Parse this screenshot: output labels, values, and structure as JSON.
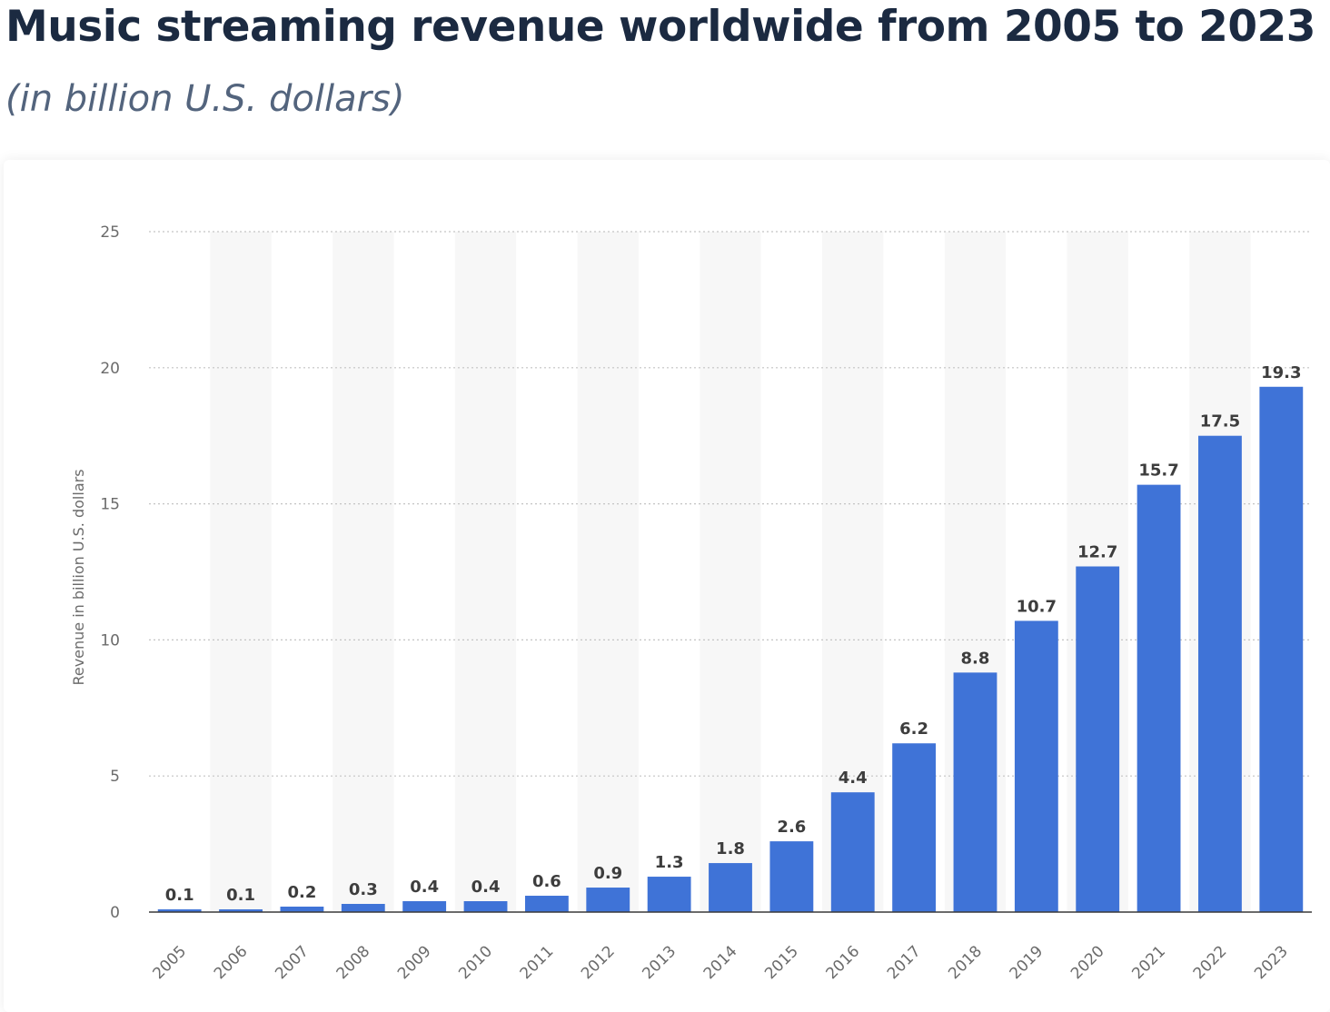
{
  "title": "Music streaming revenue worldwide from 2005 to 2023",
  "subtitle": "(in billion U.S. dollars)",
  "colors": {
    "bar": "#3f73d7",
    "band": "#f7f7f7",
    "grid": "#c4c4c4",
    "axis": "#3a3a3a"
  },
  "chart_data": {
    "type": "bar",
    "categories": [
      "2005",
      "2006",
      "2007",
      "2008",
      "2009",
      "2010",
      "2011",
      "2012",
      "2013",
      "2014",
      "2015",
      "2016",
      "2017",
      "2018",
      "2019",
      "2020",
      "2021",
      "2022",
      "2023"
    ],
    "values": [
      0.1,
      0.1,
      0.2,
      0.3,
      0.4,
      0.4,
      0.6,
      0.9,
      1.3,
      1.8,
      2.6,
      4.4,
      6.2,
      8.8,
      10.7,
      12.7,
      15.7,
      17.5,
      19.3
    ],
    "value_labels": [
      "0.1",
      "0.1",
      "0.2",
      "0.3",
      "0.4",
      "0.4",
      "0.6",
      "0.9",
      "1.3",
      "1.8",
      "2.6",
      "4.4",
      "6.2",
      "8.8",
      "10.7",
      "12.7",
      "15.7",
      "17.5",
      "19.3"
    ],
    "ylabel": "Revenue in billion U.S. dollars",
    "xlabel": "",
    "ylim": [
      0,
      25
    ],
    "yticks": [
      0,
      5,
      10,
      15,
      20,
      25
    ],
    "grid": true,
    "alternating_bands": true
  }
}
